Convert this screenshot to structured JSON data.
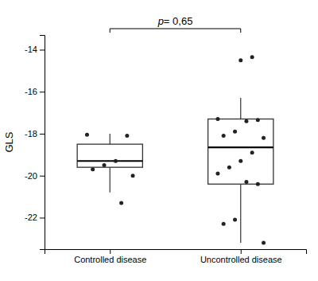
{
  "chart_data": {
    "type": "box",
    "ylabel": "GLS",
    "categories": [
      "Controlled disease",
      "Uncontrolled disease"
    ],
    "boxes": [
      {
        "q1": -19.6,
        "median": -19.3,
        "q3": -18.5,
        "whisker_low": -20.8,
        "whisker_high": -18.0,
        "points": [
          -18.05,
          -18.1,
          -19.3,
          -19.5,
          -19.7,
          -20.0,
          -21.3
        ]
      },
      {
        "q1": -20.4,
        "median": -18.65,
        "q3": -17.3,
        "whisker_low": -23.2,
        "whisker_high": -16.3,
        "points": [
          -17.3,
          -17.35,
          -17.4,
          -17.9,
          -18.1,
          -18.2,
          -18.9,
          -19.3,
          -19.6,
          -19.9,
          -20.4,
          -20.3,
          -22.1,
          -22.3,
          -23.2,
          -14.35,
          -14.5
        ]
      }
    ],
    "annotations": [
      {
        "text": "p= 0,65"
      }
    ],
    "ylim": [
      -23.5,
      -13.3
    ],
    "yticks": [
      -14,
      -16,
      -18,
      -20,
      -22
    ],
    "grid": false
  }
}
